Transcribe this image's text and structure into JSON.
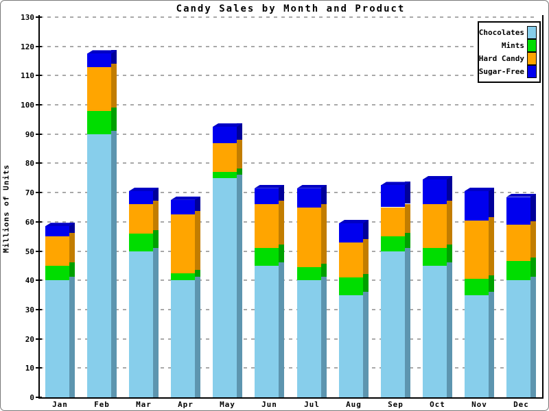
{
  "title": "Candy Sales by Month and Product",
  "ylabel": "Millions of Units",
  "chart_data": {
    "type": "bar",
    "stacked": true,
    "title": "Candy Sales by Month and Product",
    "ylabel": "Millions of Units",
    "xlabel": "",
    "categories": [
      "Jan",
      "Feb",
      "Mar",
      "Apr",
      "May",
      "Jun",
      "Jul",
      "Aug",
      "Sep",
      "Oct",
      "Nov",
      "Dec"
    ],
    "series": [
      {
        "name": "Chocolates",
        "color": "#87CEEB",
        "side_color": "#5D95AF",
        "top_color": "#73B4D0",
        "values": [
          40,
          90,
          50,
          40,
          75,
          45,
          40,
          35,
          50,
          45,
          35,
          40
        ]
      },
      {
        "name": "Mints",
        "color": "#00DD00",
        "side_color": "#00A000",
        "top_color": "#00BC00",
        "values": [
          5,
          8,
          6,
          2.5,
          2,
          6,
          4.5,
          6,
          5,
          6,
          5.5,
          6.5
        ]
      },
      {
        "name": "Hard Candy",
        "color": "#FFA500",
        "side_color": "#C27D00",
        "top_color": "#DD8F00",
        "values": [
          10,
          15,
          10,
          20,
          10,
          15,
          20.5,
          12,
          10,
          15,
          20,
          12.5
        ]
      },
      {
        "name": "Sugar-Free",
        "color": "#0000EE",
        "side_color": "#000099",
        "top_color": "#0000C4",
        "values": [
          3.5,
          4.5,
          4.5,
          5,
          5.5,
          5.5,
          6.5,
          6.5,
          7.5,
          8.5,
          10,
          9.5
        ]
      }
    ],
    "totals": [
      58.5,
      117.5,
      70.5,
      67.5,
      92.5,
      71.5,
      71.5,
      59.5,
      72.5,
      74.5,
      70.5,
      68.5
    ],
    "ylim": [
      0,
      130
    ],
    "yticks": [
      0,
      10,
      20,
      30,
      40,
      50,
      60,
      70,
      80,
      90,
      100,
      110,
      120,
      130
    ],
    "grid": true,
    "grid_style": "dashed",
    "legend_position": "top-right",
    "legend_entries": [
      "Chocolates",
      "Mints",
      "Hard Candy",
      "Sugar-Free"
    ]
  },
  "colors": {
    "background": "#FFFFFF",
    "axis": "#000000",
    "gridline": "#A8A8A8",
    "chocolates": "#87CEEB",
    "mints": "#00DD00",
    "hard_candy": "#FFA500",
    "sugar_free": "#0000EE"
  }
}
